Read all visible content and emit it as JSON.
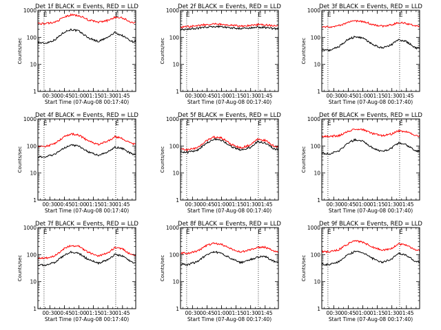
{
  "figure": {
    "xlabel": "Start Time (07-Aug-08 00:17:40)",
    "ylabel": "Counts/sec"
  },
  "chart_data": [
    {
      "type": "line",
      "title": "Det 1f BLACK = Events, RED = LLD",
      "xlabel": "Start Time (07-Aug-08 00:17:40)",
      "ylabel": "Counts/sec",
      "ylog": true,
      "ylim": [
        1,
        1000
      ],
      "xlim": [
        "00:17:40",
        "01:58:40"
      ],
      "x_ticks": [
        "00:30",
        "00:45",
        "01:00",
        "01:15",
        "01:30",
        "01:45"
      ],
      "y_ticks": [
        "1",
        "10",
        "100",
        "1000"
      ],
      "vlines": [
        "00:24",
        "01:38"
      ],
      "vline_labels": [
        "E",
        "E"
      ],
      "series": [
        {
          "color": "#000000",
          "x": [
            "00:17",
            "00:25",
            "00:35",
            "00:45",
            "00:52",
            "01:00",
            "01:10",
            "01:20",
            "01:30",
            "01:37",
            "01:45",
            "01:55"
          ],
          "y": [
            65,
            60,
            80,
            160,
            195,
            170,
            95,
            70,
            100,
            150,
            115,
            70
          ]
        },
        {
          "color": "#ff0000",
          "x": [
            "00:17",
            "00:25",
            "00:35",
            "00:45",
            "00:52",
            "01:00",
            "01:10",
            "01:20",
            "01:30",
            "01:37",
            "01:45",
            "01:55"
          ],
          "y": [
            330,
            320,
            360,
            560,
            680,
            640,
            440,
            360,
            420,
            560,
            520,
            350
          ]
        }
      ]
    },
    {
      "type": "line",
      "title": "Det 2f BLACK = Events, RED = LLD",
      "xlabel": "Start Time (07-Aug-08 00:17:40)",
      "ylabel": "Counts/sec",
      "ylog": true,
      "ylim": [
        1,
        1000
      ],
      "xlim": [
        "00:17:40",
        "01:58:40"
      ],
      "x_ticks": [
        "00:30",
        "00:45",
        "01:00",
        "01:15",
        "01:30",
        "01:45"
      ],
      "y_ticks": [
        "1",
        "10",
        "100",
        "1000"
      ],
      "vlines": [
        "00:24",
        "01:38"
      ],
      "vline_labels": [
        "E",
        "E"
      ],
      "series": [
        {
          "color": "#000000",
          "x": [
            "00:17",
            "00:25",
            "00:35",
            "00:45",
            "00:52",
            "01:00",
            "01:10",
            "01:20",
            "01:30",
            "01:37",
            "01:45",
            "01:55"
          ],
          "y": [
            190,
            200,
            215,
            240,
            250,
            245,
            225,
            210,
            220,
            240,
            230,
            210
          ]
        },
        {
          "color": "#ff0000",
          "x": [
            "00:17",
            "00:25",
            "00:35",
            "00:45",
            "00:52",
            "01:00",
            "01:10",
            "01:20",
            "01:30",
            "01:37",
            "01:45",
            "01:55"
          ],
          "y": [
            240,
            250,
            270,
            300,
            310,
            300,
            280,
            260,
            270,
            300,
            290,
            260
          ]
        }
      ]
    },
    {
      "type": "line",
      "title": "Det 3f BLACK = Events, RED = LLD",
      "xlabel": "Start Time (07-Aug-08 00:17:40)",
      "ylabel": "Counts/sec",
      "ylog": true,
      "ylim": [
        1,
        1000
      ],
      "xlim": [
        "00:17:40",
        "01:58:40"
      ],
      "x_ticks": [
        "00:30",
        "00:45",
        "01:00",
        "01:15",
        "01:30",
        "01:45"
      ],
      "y_ticks": [
        "1",
        "10",
        "100",
        "1000"
      ],
      "vlines": [
        "00:24",
        "01:38"
      ],
      "vline_labels": [
        "E",
        "E"
      ],
      "series": [
        {
          "color": "#000000",
          "x": [
            "00:17",
            "00:25",
            "00:35",
            "00:45",
            "00:52",
            "01:00",
            "01:10",
            "01:20",
            "01:30",
            "01:37",
            "01:45",
            "01:55"
          ],
          "y": [
            35,
            33,
            45,
            85,
            105,
            95,
            55,
            40,
            55,
            80,
            70,
            40
          ]
        },
        {
          "color": "#ff0000",
          "x": [
            "00:17",
            "00:25",
            "00:35",
            "00:45",
            "00:52",
            "01:00",
            "01:10",
            "01:20",
            "01:30",
            "01:37",
            "01:45",
            "01:55"
          ],
          "y": [
            250,
            240,
            270,
            360,
            410,
            390,
            300,
            260,
            290,
            350,
            330,
            260
          ]
        }
      ]
    },
    {
      "type": "line",
      "title": "Det 4f BLACK = Events, RED = LLD",
      "xlabel": "Start Time (07-Aug-08 00:17:40)",
      "ylabel": "Counts/sec",
      "ylog": true,
      "ylim": [
        1,
        1000
      ],
      "xlim": [
        "00:17:40",
        "01:58:40"
      ],
      "x_ticks": [
        "00:30",
        "00:45",
        "01:00",
        "01:15",
        "01:30",
        "01:45"
      ],
      "y_ticks": [
        "1",
        "10",
        "100",
        "1000"
      ],
      "vlines": [
        "00:24",
        "01:38"
      ],
      "vline_labels": [
        "E",
        "E"
      ],
      "series": [
        {
          "color": "#000000",
          "x": [
            "00:17",
            "00:25",
            "00:35",
            "00:45",
            "00:52",
            "01:00",
            "01:10",
            "01:20",
            "01:30",
            "01:37",
            "01:45",
            "01:55"
          ],
          "y": [
            40,
            38,
            50,
            85,
            110,
            100,
            60,
            45,
            60,
            90,
            80,
            50
          ]
        },
        {
          "color": "#ff0000",
          "x": [
            "00:17",
            "00:25",
            "00:35",
            "00:45",
            "00:52",
            "01:00",
            "01:10",
            "01:20",
            "01:30",
            "01:37",
            "01:45",
            "01:55"
          ],
          "y": [
            100,
            95,
            120,
            220,
            280,
            250,
            150,
            115,
            150,
            220,
            190,
            120
          ]
        }
      ]
    },
    {
      "type": "line",
      "title": "Det 5f BLACK = Events, RED = LLD",
      "xlabel": "Start Time (07-Aug-08 00:17:40)",
      "ylabel": "Counts/sec",
      "ylog": true,
      "ylim": [
        1,
        1000
      ],
      "xlim": [
        "00:17:40",
        "01:58:40"
      ],
      "x_ticks": [
        "00:30",
        "00:45",
        "01:00",
        "01:15",
        "01:30",
        "01:45"
      ],
      "y_ticks": [
        "1",
        "10",
        "100",
        "1000"
      ],
      "vlines": [
        "00:24",
        "01:38"
      ],
      "vline_labels": [
        "E",
        "E"
      ],
      "series": [
        {
          "color": "#000000",
          "x": [
            "00:17",
            "00:25",
            "00:35",
            "00:45",
            "00:52",
            "01:00",
            "01:10",
            "01:20",
            "01:30",
            "01:37",
            "01:45",
            "01:55"
          ],
          "y": [
            60,
            58,
            70,
            130,
            175,
            165,
            95,
            70,
            90,
            145,
            130,
            75
          ]
        },
        {
          "color": "#ff0000",
          "x": [
            "00:17",
            "00:25",
            "00:35",
            "00:45",
            "00:52",
            "01:00",
            "01:10",
            "01:20",
            "01:30",
            "01:37",
            "01:45",
            "01:55"
          ],
          "y": [
            75,
            72,
            85,
            160,
            215,
            200,
            115,
            85,
            110,
            175,
            160,
            95
          ]
        }
      ]
    },
    {
      "type": "line",
      "title": "Det 6f BLACK = Events, RED = LLD",
      "xlabel": "Start Time (07-Aug-08 00:17:40)",
      "ylabel": "Counts/sec",
      "ylog": true,
      "ylim": [
        1,
        1000
      ],
      "xlim": [
        "00:17:40",
        "01:58:40"
      ],
      "x_ticks": [
        "00:30",
        "00:45",
        "01:00",
        "01:15",
        "01:30",
        "01:45"
      ],
      "y_ticks": [
        "1",
        "10",
        "100",
        "1000"
      ],
      "vlines": [
        "00:24",
        "01:38"
      ],
      "vline_labels": [
        "E",
        "E"
      ],
      "series": [
        {
          "color": "#000000",
          "x": [
            "00:17",
            "00:25",
            "00:35",
            "00:45",
            "00:52",
            "01:00",
            "01:10",
            "01:20",
            "01:30",
            "01:37",
            "01:45",
            "01:55"
          ],
          "y": [
            55,
            50,
            65,
            130,
            170,
            150,
            85,
            62,
            85,
            130,
            110,
            65
          ]
        },
        {
          "color": "#ff0000",
          "x": [
            "00:17",
            "00:25",
            "00:35",
            "00:45",
            "00:52",
            "01:00",
            "01:10",
            "01:20",
            "01:30",
            "01:37",
            "01:45",
            "01:55"
          ],
          "y": [
            230,
            225,
            240,
            340,
            430,
            400,
            290,
            240,
            280,
            360,
            330,
            240
          ]
        }
      ]
    },
    {
      "type": "line",
      "title": "Det 7f BLACK = Events, RED = LLD",
      "xlabel": "Start Time (07-Aug-08 00:17:40)",
      "ylabel": "Counts/sec",
      "ylog": true,
      "ylim": [
        1,
        1000
      ],
      "xlim": [
        "00:17:40",
        "01:58:40"
      ],
      "x_ticks": [
        "00:30",
        "00:45",
        "01:00",
        "01:15",
        "01:30",
        "01:45"
      ],
      "y_ticks": [
        "1",
        "10",
        "100",
        "1000"
      ],
      "vlines": [
        "00:24",
        "01:38"
      ],
      "vline_labels": [
        "E",
        "E"
      ],
      "series": [
        {
          "color": "#000000",
          "x": [
            "00:17",
            "00:25",
            "00:35",
            "00:45",
            "00:52",
            "01:00",
            "01:10",
            "01:20",
            "01:30",
            "01:37",
            "01:45",
            "01:55"
          ],
          "y": [
            42,
            40,
            52,
            95,
            125,
            110,
            65,
            48,
            65,
            100,
            90,
            52
          ]
        },
        {
          "color": "#ff0000",
          "x": [
            "00:17",
            "00:25",
            "00:35",
            "00:45",
            "00:52",
            "01:00",
            "01:10",
            "01:20",
            "01:30",
            "01:37",
            "01:45",
            "01:55"
          ],
          "y": [
            75,
            72,
            90,
            170,
            220,
            200,
            120,
            88,
            115,
            180,
            160,
            95
          ]
        }
      ]
    },
    {
      "type": "line",
      "title": "Det 8f BLACK = Events, RED = LLD",
      "xlabel": "Start Time (07-Aug-08 00:17:40)",
      "ylabel": "Counts/sec",
      "ylog": true,
      "ylim": [
        1,
        1000
      ],
      "xlim": [
        "00:17:40",
        "01:58:40"
      ],
      "x_ticks": [
        "00:30",
        "00:45",
        "01:00",
        "01:15",
        "01:30",
        "01:45"
      ],
      "y_ticks": [
        "1",
        "10",
        "100",
        "1000"
      ],
      "vlines": [
        "00:24",
        "01:38"
      ],
      "vline_labels": [
        "E",
        "E"
      ],
      "series": [
        {
          "color": "#000000",
          "x": [
            "00:17",
            "00:25",
            "00:35",
            "00:45",
            "00:52",
            "01:00",
            "01:10",
            "01:20",
            "01:30",
            "01:37",
            "01:45",
            "01:55"
          ],
          "y": [
            45,
            42,
            55,
            100,
            125,
            115,
            70,
            50,
            65,
            80,
            85,
            55
          ]
        },
        {
          "color": "#ff0000",
          "x": [
            "00:17",
            "00:25",
            "00:35",
            "00:45",
            "00:52",
            "01:00",
            "01:10",
            "01:20",
            "01:30",
            "01:37",
            "01:45",
            "01:55"
          ],
          "y": [
            115,
            110,
            135,
            220,
            260,
            240,
            165,
            125,
            150,
            180,
            190,
            130
          ]
        }
      ]
    },
    {
      "type": "line",
      "title": "Det 9f BLACK = Events, RED = LLD",
      "xlabel": "Start Time (07-Aug-08 00:17:40)",
      "ylabel": "Counts/sec",
      "ylog": true,
      "ylim": [
        1,
        1000
      ],
      "xlim": [
        "00:17:40",
        "01:58:40"
      ],
      "x_ticks": [
        "00:30",
        "00:45",
        "01:00",
        "01:15",
        "01:30",
        "01:45"
      ],
      "y_ticks": [
        "1",
        "10",
        "100",
        "1000"
      ],
      "vlines": [
        "00:24",
        "01:38"
      ],
      "vline_labels": [
        "E",
        "E"
      ],
      "series": [
        {
          "color": "#000000",
          "x": [
            "00:17",
            "00:25",
            "00:35",
            "00:45",
            "00:52",
            "01:00",
            "01:10",
            "01:20",
            "01:30",
            "01:37",
            "01:45",
            "01:55"
          ],
          "y": [
            45,
            42,
            55,
            100,
            130,
            120,
            72,
            52,
            70,
            110,
            95,
            55
          ]
        },
        {
          "color": "#ff0000",
          "x": [
            "00:17",
            "00:25",
            "00:35",
            "00:45",
            "00:52",
            "01:00",
            "01:10",
            "01:20",
            "01:30",
            "01:37",
            "01:45",
            "01:55"
          ],
          "y": [
            130,
            125,
            150,
            250,
            320,
            290,
            190,
            140,
            170,
            250,
            220,
            140
          ]
        }
      ]
    }
  ]
}
